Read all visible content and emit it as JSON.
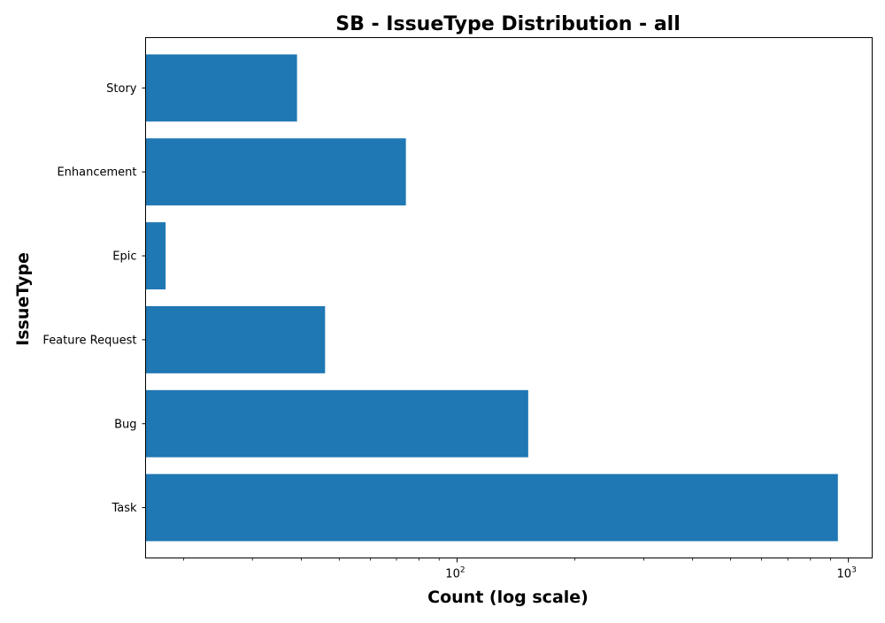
{
  "chart_data": {
    "type": "bar",
    "orientation": "horizontal",
    "title": "SB - IssueType Distribution - all",
    "xlabel": "Count (log scale)",
    "ylabel": "IssueType",
    "x_scale": "log",
    "xlim": [
      16,
      1150
    ],
    "categories": [
      "Task",
      "Bug",
      "Feature Request",
      "Epic",
      "Enhancement",
      "Story"
    ],
    "values": [
      940,
      152,
      46,
      18,
      74,
      39
    ],
    "x_major_ticks": [
      100,
      1000
    ],
    "x_major_tick_labels": [
      "10",
      "10"
    ],
    "x_major_tick_exponents": [
      "2",
      "3"
    ],
    "x_minor_ticks": [
      20,
      30,
      40,
      50,
      60,
      70,
      80,
      90,
      200,
      300,
      400,
      500,
      600,
      700,
      800,
      900
    ],
    "grid": false,
    "legend": "none",
    "colors": {
      "bar": "#1f77b4",
      "axis": "#000000",
      "background": "#ffffff"
    }
  }
}
